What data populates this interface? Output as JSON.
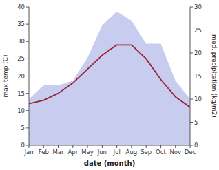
{
  "chart_data": {
    "type": "line",
    "categories": [
      "Jan",
      "Feb",
      "Mar",
      "Apr",
      "May",
      "Jun",
      "Jul",
      "Aug",
      "Sep",
      "Oct",
      "Nov",
      "Dec"
    ],
    "xlabel": "date (month)",
    "ylabel": "max temp (C)",
    "y2label": "med. precipitation (kg/m2)",
    "ylim": [
      0,
      40
    ],
    "yticks": [
      0,
      5,
      10,
      15,
      20,
      25,
      30,
      35,
      40
    ],
    "y2lim": [
      0,
      30
    ],
    "y2ticks": [
      0,
      5,
      10,
      15,
      20,
      25,
      30
    ],
    "grid": false,
    "series": [
      {
        "type": "area",
        "axis": "y2",
        "color": "#c8ccee",
        "values": [
          10,
          13,
          13,
          14,
          19,
          26,
          29,
          27,
          22,
          22,
          14,
          10
        ]
      },
      {
        "type": "line",
        "color": "#9b2335",
        "values": [
          12,
          13,
          15,
          18,
          22,
          26,
          29,
          29,
          25,
          19,
          14,
          11
        ]
      }
    ]
  }
}
